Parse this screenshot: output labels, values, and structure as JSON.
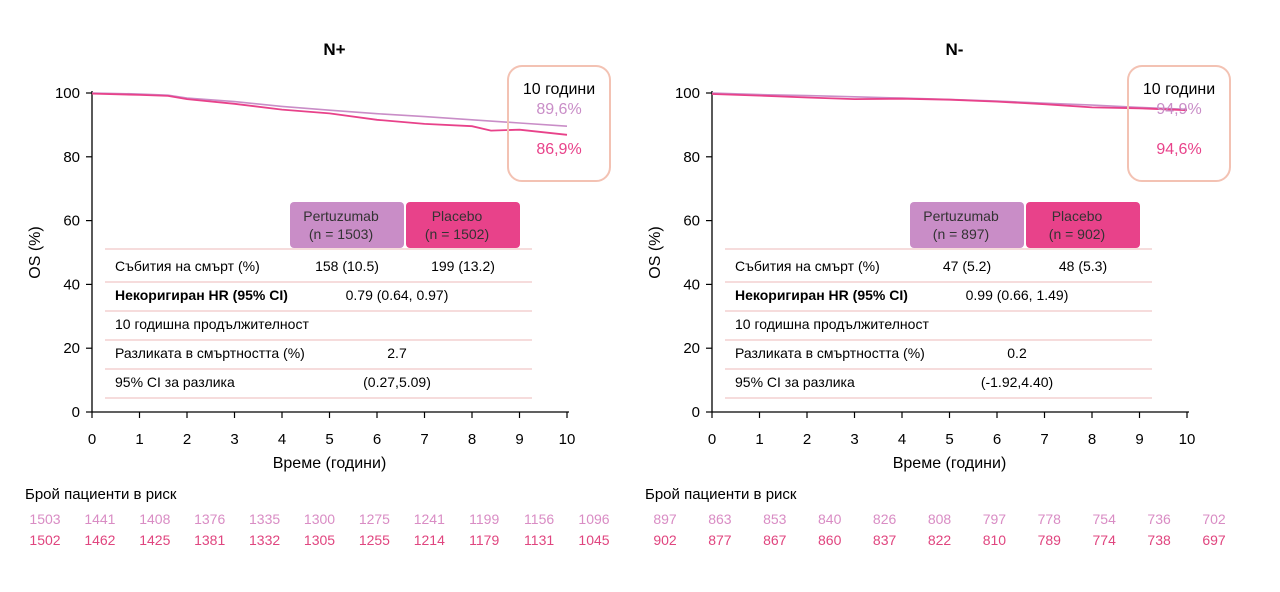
{
  "colors": {
    "pertuzumab": "#c98dc7",
    "placebo": "#e8428a",
    "callout_border": "#f3c2b3",
    "table_line": "#f0c6c6",
    "risk_pertuzumab": "#d98cc4",
    "risk_placebo": "#e0457f"
  },
  "chart_data": [
    {
      "type": "line",
      "title": "N+",
      "xlabel": "Време (години)",
      "ylabel": "OS (%)",
      "xlim": [
        0,
        10
      ],
      "ylim": [
        0,
        100
      ],
      "xticks": [
        "0",
        "1",
        "2",
        "3",
        "4",
        "5",
        "6",
        "7",
        "8",
        "9",
        "10"
      ],
      "yticks": [
        "0",
        "20",
        "40",
        "60",
        "80",
        "100"
      ],
      "series": [
        {
          "key": "pertuzumab",
          "x": [
            0,
            1,
            1.6,
            2,
            3,
            4,
            5,
            6,
            7,
            8,
            9,
            10
          ],
          "y": [
            100,
            99.7,
            99.3,
            98.4,
            97.3,
            95.8,
            94.6,
            93.5,
            92.6,
            91.6,
            90.6,
            89.6
          ]
        },
        {
          "key": "placebo",
          "x": [
            0,
            1,
            1.6,
            2,
            3,
            4,
            5,
            6,
            7,
            8,
            8.4,
            9,
            10
          ],
          "y": [
            99.8,
            99.4,
            99.1,
            98.1,
            96.6,
            94.8,
            93.6,
            91.6,
            90.3,
            89.6,
            88.2,
            88.5,
            86.9
          ]
        }
      ],
      "callout": {
        "title": "10 години",
        "pertuzumab_value": "89,6%",
        "placebo_value": "86,9%"
      },
      "legend": {
        "pertuzumab": {
          "name": "Pertuzumab",
          "n": "(n = 1503)"
        },
        "placebo": {
          "name": "Placebo",
          "n": "(n = 1502)"
        }
      },
      "table_rows": [
        {
          "label": "Събития на смърт (%)",
          "bold": false,
          "pertuzumab": "158 (10.5)",
          "placebo": "199 (13.2)"
        },
        {
          "label": "Некоригиран HR (95% CI)",
          "bold": true,
          "merged": "0.79 (0.64, 0.97)"
        },
        {
          "label": "10 годишна продължителност",
          "bold": false,
          "merged": ""
        },
        {
          "label": "Разликата в смъртността (%)",
          "bold": false,
          "merged": "2.7"
        },
        {
          "label": "95% CI за разлика",
          "bold": false,
          "merged": "(0.27,5.09)"
        }
      ],
      "risk": {
        "title": "Брой пациенти в риск",
        "pertuzumab": [
          "1503",
          "1441",
          "1408",
          "1376",
          "1335",
          "1300",
          "1275",
          "1241",
          "1199",
          "1156",
          "1096"
        ],
        "placebo": [
          "1502",
          "1462",
          "1425",
          "1381",
          "1332",
          "1305",
          "1255",
          "1214",
          "1179",
          "1131",
          "1045"
        ]
      }
    },
    {
      "type": "line",
      "title": "N-",
      "xlabel": "Време (години)",
      "ylabel": "OS (%)",
      "xlim": [
        0,
        10
      ],
      "ylim": [
        0,
        100
      ],
      "xticks": [
        "0",
        "1",
        "2",
        "3",
        "4",
        "5",
        "6",
        "7",
        "8",
        "9",
        "10"
      ],
      "yticks": [
        "0",
        "20",
        "40",
        "60",
        "80",
        "100"
      ],
      "series": [
        {
          "key": "pertuzumab",
          "x": [
            0,
            1,
            2,
            3,
            4,
            5,
            6,
            7,
            8,
            9,
            10
          ],
          "y": [
            100,
            99.5,
            99.2,
            98.8,
            98.4,
            98.0,
            97.5,
            96.8,
            96.2,
            95.5,
            94.9
          ]
        },
        {
          "key": "placebo",
          "x": [
            0,
            1,
            2,
            3,
            4,
            5,
            6,
            7,
            8,
            9,
            10
          ],
          "y": [
            99.7,
            99.2,
            98.6,
            98.1,
            98.2,
            97.9,
            97.3,
            96.5,
            95.5,
            95.2,
            94.6
          ]
        }
      ],
      "callout": {
        "title": "10 години",
        "pertuzumab_value": "94,9%",
        "placebo_value": "94,6%"
      },
      "legend": {
        "pertuzumab": {
          "name": "Pertuzumab",
          "n": "(n = 897)"
        },
        "placebo": {
          "name": "Placebo",
          "n": "(n = 902)"
        }
      },
      "table_rows": [
        {
          "label": "Събития на смърт (%)",
          "bold": false,
          "pertuzumab": "47 (5.2)",
          "placebo": "48 (5.3)"
        },
        {
          "label": "Некоригиран HR (95% CI)",
          "bold": true,
          "merged": "0.99 (0.66, 1.49)"
        },
        {
          "label": "10 годишна продължителност",
          "bold": false,
          "merged": ""
        },
        {
          "label": "Разликата в смъртността (%)",
          "bold": false,
          "merged": "0.2"
        },
        {
          "label": "95% CI за разлика",
          "bold": false,
          "merged": "(-1.92,4.40)"
        }
      ],
      "risk": {
        "title": "Брой пациенти в риск",
        "pertuzumab": [
          "897",
          "863",
          "853",
          "840",
          "826",
          "808",
          "797",
          "778",
          "754",
          "736",
          "702"
        ],
        "placebo": [
          "902",
          "877",
          "867",
          "860",
          "837",
          "822",
          "810",
          "789",
          "774",
          "738",
          "697"
        ]
      }
    }
  ]
}
